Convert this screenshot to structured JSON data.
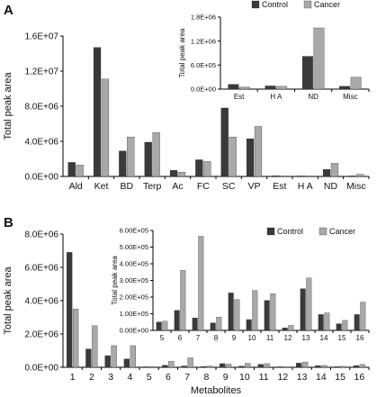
{
  "colors": {
    "control": "#3a3a3a",
    "cancer": "#a9a9a9",
    "axis": "#000000"
  },
  "chart_data": [
    {
      "panel": "A",
      "type": "bar",
      "ylabel": "Total peak area",
      "xlabel": "",
      "ylim": [
        0,
        16000000
      ],
      "yticks": [
        0,
        4000000,
        8000000,
        12000000,
        16000000
      ],
      "ytick_labels": [
        "0.0E+00",
        "4.0E+06",
        "8.0E+06",
        "1.2E+07",
        "1.6E+07"
      ],
      "categories": [
        "Ald",
        "Ket",
        "BD",
        "Terp",
        "Ac",
        "FC",
        "SC",
        "VP",
        "Est",
        "H A",
        "ND",
        "Misc"
      ],
      "series": [
        {
          "name": "Control",
          "values": [
            1600000,
            14700000,
            2900000,
            3900000,
            700000,
            1900000,
            7800000,
            4300000,
            80000,
            60000,
            800000,
            60000
          ]
        },
        {
          "name": "Cancer",
          "values": [
            1300000,
            11100000,
            4500000,
            5000000,
            500000,
            1700000,
            4500000,
            5700000,
            40000,
            30000,
            1500000,
            250000
          ]
        }
      ]
    },
    {
      "panel": "A-inset",
      "type": "bar",
      "ylabel": "Total peak area",
      "xlabel": "",
      "ylim": [
        0,
        1800000
      ],
      "yticks": [
        0,
        600000,
        1200000,
        1800000
      ],
      "ytick_labels": [
        "0.0E+00",
        "6.0E+05",
        "1.2E+06",
        "1.8E+06"
      ],
      "categories": [
        "Est",
        "H A",
        "ND",
        "Misc"
      ],
      "legend": [
        "Control",
        "Cancer"
      ],
      "series": [
        {
          "name": "Control",
          "values": [
            120000,
            80000,
            820000,
            70000
          ]
        },
        {
          "name": "Cancer",
          "values": [
            50000,
            70000,
            1530000,
            300000
          ]
        }
      ]
    },
    {
      "panel": "B",
      "type": "bar",
      "ylabel": "Total peak area",
      "xlabel": "Metabolites",
      "ylim": [
        0,
        8000000
      ],
      "yticks": [
        0,
        2000000,
        4000000,
        6000000,
        8000000
      ],
      "ytick_labels": [
        "0.0E+00",
        "2.0E+06",
        "4.0E+06",
        "6.0E+06",
        "8.0E+06"
      ],
      "categories": [
        "1",
        "2",
        "3",
        "4",
        "5",
        "6",
        "7",
        "8",
        "9",
        "10",
        "11",
        "12",
        "13",
        "14",
        "15",
        "16"
      ],
      "series": [
        {
          "name": "Control",
          "values": [
            6900000,
            1100000,
            700000,
            500000,
            30000,
            120000,
            80000,
            50000,
            220000,
            70000,
            180000,
            10000,
            250000,
            100000,
            40000,
            100000
          ]
        },
        {
          "name": "Cancer",
          "values": [
            3500000,
            2500000,
            1300000,
            1300000,
            50000,
            360000,
            570000,
            80000,
            190000,
            240000,
            220000,
            30000,
            320000,
            110000,
            60000,
            170000
          ]
        }
      ]
    },
    {
      "panel": "B-inset",
      "type": "bar",
      "ylabel": "Total peak area",
      "xlabel": "",
      "ylim": [
        0,
        600000
      ],
      "yticks": [
        0,
        100000,
        200000,
        300000,
        400000,
        500000,
        600000
      ],
      "ytick_labels": [
        "0.00E+00",
        "1.00E+05",
        "2.00E+05",
        "3.00E+05",
        "4.00E+05",
        "5.00E+05",
        "6.00E+05"
      ],
      "categories": [
        "5",
        "6",
        "7",
        "8",
        "9",
        "10",
        "11",
        "12",
        "13",
        "14",
        "15",
        "16"
      ],
      "legend": [
        "Control",
        "Cancer"
      ],
      "series": [
        {
          "name": "Control",
          "values": [
            50000,
            120000,
            75000,
            45000,
            225000,
            65000,
            180000,
            15000,
            250000,
            95000,
            40000,
            95000
          ]
        },
        {
          "name": "Cancer",
          "values": [
            55000,
            360000,
            565000,
            80000,
            185000,
            240000,
            220000,
            30000,
            315000,
            105000,
            60000,
            170000
          ]
        }
      ]
    }
  ]
}
